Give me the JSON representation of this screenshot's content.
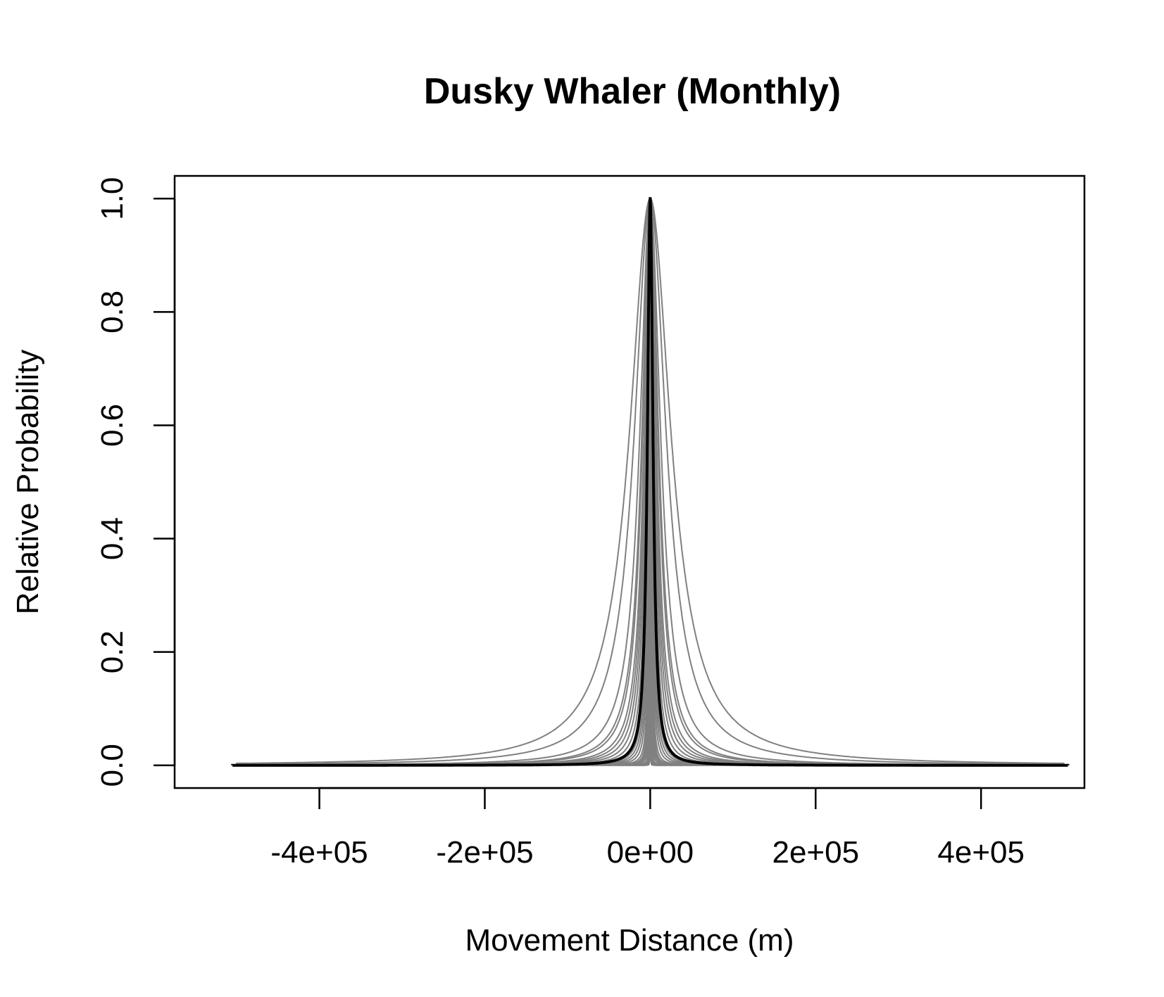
{
  "chart_data": {
    "type": "line",
    "title": "Dusky Whaler (Monthly)",
    "xlabel": "Movement Distance (m)",
    "ylabel": "Relative Probability",
    "xlim": [
      -575000,
      525000
    ],
    "ylim": [
      -0.04,
      1.04
    ],
    "x_ticks": [
      -400000,
      -200000,
      0,
      200000,
      400000
    ],
    "x_tick_labels": [
      "-4e+05",
      "-2e+05",
      "0e+00",
      "2e+05",
      "4e+05"
    ],
    "y_ticks": [
      0.0,
      0.2,
      0.4,
      0.6,
      0.8,
      1.0
    ],
    "y_tick_labels": [
      "0.0",
      "0.2",
      "0.4",
      "0.6",
      "0.8",
      "1.0"
    ],
    "grid": false,
    "legend": false,
    "colors": {
      "gray_curves": "#808080",
      "mean_curve": "#000000"
    },
    "gray_curves_note": "Family of sampled Cauchy-shaped dispersal kernels, peak 1.0 at 0, each truncated with a vertical drop to 0 at its range limit",
    "gray_curves": [
      {
        "scale": 30000,
        "cutoff": 500000
      },
      {
        "scale": 23000,
        "cutoff": 500000
      },
      {
        "scale": 15000,
        "cutoff": 470000
      },
      {
        "scale": 12000,
        "cutoff": 380000
      },
      {
        "scale": 11000,
        "cutoff": 360000
      },
      {
        "scale": 9000,
        "cutoff": 310000
      },
      {
        "scale": 8000,
        "cutoff": 290000
      },
      {
        "scale": 7000,
        "cutoff": 280000
      },
      {
        "scale": 6000,
        "cutoff": 240000
      },
      {
        "scale": 5000,
        "cutoff": 200000
      },
      {
        "scale": 4000,
        "cutoff": 180000
      },
      {
        "scale": 3500,
        "cutoff": 150000
      },
      {
        "scale": 3000,
        "cutoff": 140000
      },
      {
        "scale": 2500,
        "cutoff": 130000
      },
      {
        "scale": 2000,
        "cutoff": 110000
      },
      {
        "scale": 1500,
        "cutoff": 100000
      },
      {
        "scale": 1200,
        "cutoff": 90000
      },
      {
        "scale": 1000,
        "cutoff": 80000
      },
      {
        "scale": 800,
        "cutoff": 70000
      },
      {
        "scale": 600,
        "cutoff": 60000
      },
      {
        "scale": 400,
        "cutoff": 50000
      },
      {
        "scale": 300,
        "cutoff": 40000
      },
      {
        "scale": 200,
        "cutoff": 30000
      },
      {
        "scale": 150,
        "cutoff": 20000
      },
      {
        "scale": 100,
        "cutoff": 15000
      },
      {
        "scale": 80,
        "cutoff": 10000
      }
    ],
    "mean_curve": {
      "scale": 4,
      "cutoff": 505000
    }
  }
}
